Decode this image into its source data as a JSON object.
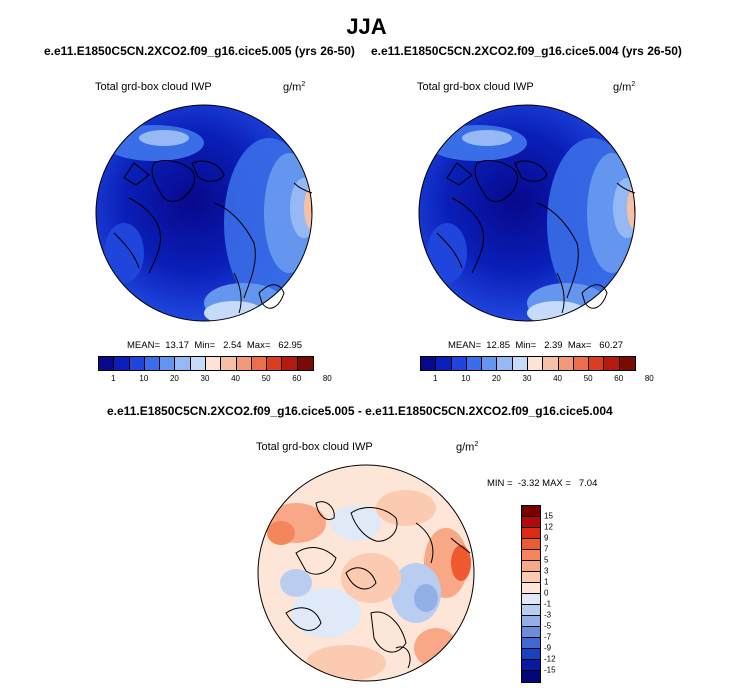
{
  "figure": {
    "title": "JJA",
    "case_left": "e.e11.E1850C5CN.2XCO2.f09_g16.cice5.005 (yrs 26-50)",
    "case_right": "e.e11.E1850C5CN.2XCO2.f09_g16.cice5.004 (yrs 26-50)",
    "diff_title": "e.e11.E1850C5CN.2XCO2.f09_g16.cice5.005 - e.e11.E1850C5CN.2XCO2.f09_g16.cice5.004"
  },
  "panels": {
    "left": {
      "label": "Total grd-box cloud IWP",
      "unit_base": "g/m",
      "unit_exp": "2",
      "stats": "MEAN=  13.17  Min=   2.54  Max=   62.95"
    },
    "right": {
      "label": "Total grd-box cloud IWP",
      "unit_base": "g/m",
      "unit_exp": "2",
      "stats": "MEAN=  12.85  Min=   2.39  Max=   60.27"
    },
    "diff": {
      "label": "Total grd-box cloud IWP",
      "unit_base": "g/m",
      "unit_exp": "2",
      "stats": "MIN =  -3.32 MAX =   7.04"
    }
  },
  "colorbars": {
    "absolute": {
      "ticks": [
        "1",
        "10",
        "20",
        "30",
        "40",
        "50",
        "60",
        "80"
      ],
      "colors": [
        "#08088c",
        "#0a1fb8",
        "#1f45dc",
        "#3a6ee8",
        "#6496f0",
        "#96b9f5",
        "#c6dbf9",
        "#fbe3d6",
        "#f6c0a6",
        "#f29a78",
        "#ec6f4c",
        "#dc3d20",
        "#b41a0e",
        "#7a0a04"
      ]
    },
    "difference": {
      "ticks": [
        "15",
        "12",
        "9",
        "7",
        "5",
        "3",
        "1",
        "0",
        "-1",
        "-3",
        "-5",
        "-7",
        "-9",
        "-12",
        "-15"
      ],
      "colors": [
        "#7a0000",
        "#b20a0a",
        "#dc2a14",
        "#ef5a30",
        "#f5855a",
        "#f8a886",
        "#fbcab0",
        "#fde6d8",
        "#dfe9f8",
        "#b9cdf0",
        "#93b0e6",
        "#6a8edc",
        "#3f68d0",
        "#1a3fc0",
        "#0a1aa0",
        "#03067a"
      ]
    }
  },
  "chart_data": {
    "type": "heatmap",
    "title": "JJA",
    "maps": [
      {
        "case": "e.e11.E1850C5CN.2XCO2.f09_g16.cice5.005 (yrs 26-50)",
        "variable": "Total grd-box cloud IWP",
        "units": "g/m2",
        "projection": "north polar stereographic",
        "mean": 13.17,
        "min": 2.54,
        "max": 62.95,
        "contour_levels": [
          1,
          10,
          20,
          30,
          40,
          50,
          60,
          80
        ]
      },
      {
        "case": "e.e11.E1850C5CN.2XCO2.f09_g16.cice5.004 (yrs 26-50)",
        "variable": "Total grd-box cloud IWP",
        "units": "g/m2",
        "projection": "north polar stereographic",
        "mean": 12.85,
        "min": 2.39,
        "max": 60.27,
        "contour_levels": [
          1,
          10,
          20,
          30,
          40,
          50,
          60,
          80
        ]
      },
      {
        "case": "e.e11.E1850C5CN.2XCO2.f09_g16.cice5.005 - e.e11.E1850C5CN.2XCO2.f09_g16.cice5.004",
        "variable": "Total grd-box cloud IWP",
        "units": "g/m2",
        "projection": "north polar stereographic",
        "min": -3.32,
        "max": 7.04,
        "contour_levels": [
          -15,
          -12,
          -9,
          -7,
          -5,
          -3,
          -1,
          0,
          1,
          3,
          5,
          7,
          9,
          12,
          15
        ]
      }
    ]
  }
}
